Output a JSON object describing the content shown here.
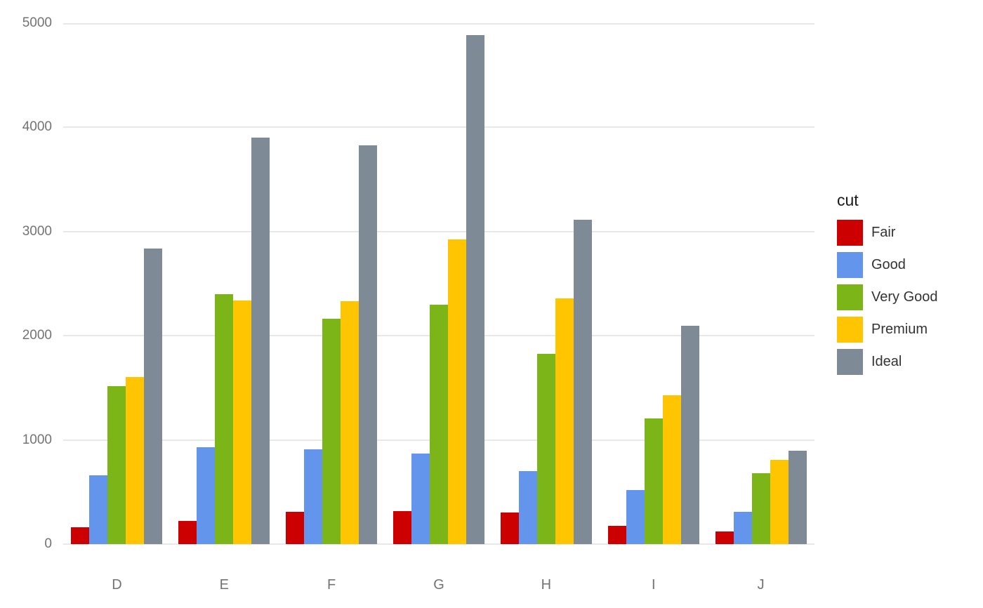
{
  "chart_data": {
    "type": "bar",
    "grouping": "grouped",
    "title": "",
    "xlabel": "",
    "ylabel": "",
    "categories": [
      "D",
      "E",
      "F",
      "G",
      "H",
      "I",
      "J"
    ],
    "series": [
      {
        "name": "Fair",
        "color": "#CC0000",
        "values": [
          163,
          224,
          312,
          314,
          303,
          175,
          119
        ]
      },
      {
        "name": "Good",
        "color": "#6495ED",
        "values": [
          662,
          933,
          909,
          871,
          702,
          522,
          307
        ]
      },
      {
        "name": "Very Good",
        "color": "#7CB518",
        "values": [
          1513,
          2400,
          2164,
          2299,
          1824,
          1204,
          678
        ]
      },
      {
        "name": "Premium",
        "color": "#FFC500",
        "values": [
          1603,
          2337,
          2331,
          2924,
          2360,
          1428,
          808
        ]
      },
      {
        "name": "Ideal",
        "color": "#7E8B96",
        "values": [
          2834,
          3903,
          3826,
          4884,
          3115,
          2093,
          896
        ]
      }
    ],
    "ylim": [
      0,
      5000
    ],
    "yticks": [
      0,
      1000,
      2000,
      3000,
      4000,
      5000
    ],
    "grid": true,
    "legend": {
      "title": "cut",
      "position": "right"
    },
    "colors": {
      "background": "#ffffff",
      "gridline": "#e8e8e8",
      "tick_text": "#737373",
      "legend_text": "#333333"
    }
  }
}
